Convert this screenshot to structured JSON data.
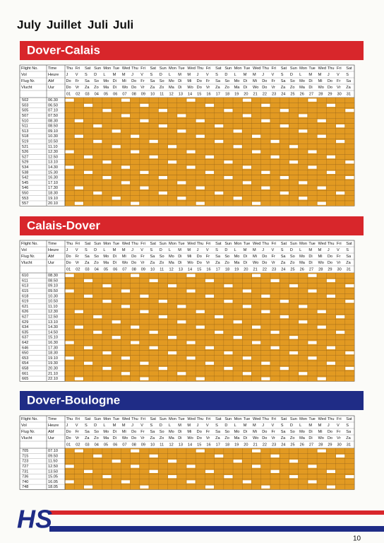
{
  "header": {
    "title": [
      "July",
      "Juillet",
      "Juli",
      "Juli"
    ]
  },
  "column_headers": {
    "flight": [
      "Flight No.",
      "Vol",
      "Flug Nr.",
      "Vlucht"
    ],
    "time": [
      "Time",
      "Heure",
      "Abf",
      "Uur"
    ]
  },
  "weekdays": {
    "en": [
      "Thu",
      "Fri",
      "Sat",
      "Sun",
      "Mon",
      "Tue",
      "Wed"
    ],
    "fr": [
      "J",
      "V",
      "S",
      "D",
      "L",
      "M",
      "M"
    ],
    "de": [
      "Do",
      "Fr",
      "Sa",
      "So",
      "Mo",
      "Di",
      "Mi"
    ],
    "nl": [
      "Do",
      "Vr",
      "Za",
      "Zo",
      "Ma",
      "Di",
      "Wo"
    ]
  },
  "dates": [
    "01",
    "02",
    "03",
    "04",
    "05",
    "06",
    "07",
    "08",
    "09",
    "10",
    "11",
    "12",
    "13",
    "14",
    "15",
    "16",
    "17",
    "18",
    "19",
    "20",
    "21",
    "22",
    "23",
    "24",
    "25",
    "26",
    "27",
    "28",
    "29",
    "30",
    "31"
  ],
  "sections": [
    {
      "title": "Dover-Calais",
      "color": "#d8262b",
      "rows": [
        [
          "502",
          "06.30"
        ],
        [
          "503",
          "06.50"
        ],
        [
          "505",
          "07.10"
        ],
        [
          "507",
          "07.50"
        ],
        [
          "510",
          "08.30"
        ],
        [
          "511",
          "08.50"
        ],
        [
          "513",
          "09.10"
        ],
        [
          "518",
          "10.30"
        ],
        [
          "519",
          "10.50"
        ],
        [
          "521",
          "11.10"
        ],
        [
          "526",
          "12.30"
        ],
        [
          "527",
          "12.50"
        ],
        [
          "529",
          "13.10"
        ],
        [
          "534",
          "14.30"
        ],
        [
          "538",
          "15.30"
        ],
        [
          "542",
          "16.30"
        ],
        [
          "545",
          "17.10"
        ],
        [
          "546",
          "17.30"
        ],
        [
          "550",
          "18.30"
        ],
        [
          "553",
          "19.10"
        ],
        [
          "557",
          "20.10"
        ]
      ]
    },
    {
      "title": "Calais-Dover",
      "color": "#d8262b",
      "rows": [
        [
          "610",
          "08.30"
        ],
        [
          "611",
          "08.50"
        ],
        [
          "613",
          "09.10"
        ],
        [
          "615",
          "09.50"
        ],
        [
          "618",
          "10.30"
        ],
        [
          "619",
          "10.50"
        ],
        [
          "621",
          "11.10"
        ],
        [
          "626",
          "12.30"
        ],
        [
          "627",
          "12.50"
        ],
        [
          "629",
          "13.10"
        ],
        [
          "634",
          "14.30"
        ],
        [
          "635",
          "14.50"
        ],
        [
          "637",
          "15.10"
        ],
        [
          "642",
          "16.30"
        ],
        [
          "646",
          "17.30"
        ],
        [
          "650",
          "18.30"
        ],
        [
          "653",
          "19.10"
        ],
        [
          "654",
          "19.30"
        ],
        [
          "658",
          "20.30"
        ],
        [
          "661",
          "21.10"
        ],
        [
          "665",
          "22.10"
        ]
      ]
    },
    {
      "title": "Dover-Boulogne",
      "color": "#1f2c86",
      "rows": [
        [
          "705",
          "07.10"
        ],
        [
          "715",
          "09.50"
        ],
        [
          "723",
          "11.50"
        ],
        [
          "727",
          "12.50"
        ],
        [
          "731",
          "13.50"
        ],
        [
          "736",
          "15.05"
        ],
        [
          "740",
          "16.05"
        ],
        [
          "748",
          "18.05"
        ]
      ]
    }
  ],
  "logo": "HS",
  "page_number": "10"
}
